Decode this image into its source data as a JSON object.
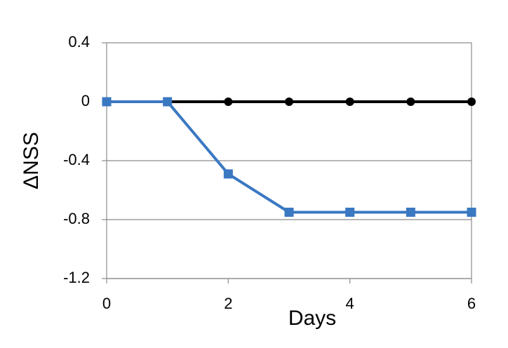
{
  "chart_data": {
    "type": "line",
    "x_label": "Days",
    "y_label": "ΔNSS",
    "xlim": [
      0,
      6
    ],
    "xticks": [
      0,
      2,
      4,
      6
    ],
    "ylim": [
      -1.2,
      0.4
    ],
    "yticks": [
      0.4,
      0,
      -0.4,
      -0.8,
      -1.2
    ],
    "grid": true,
    "series": [
      {
        "color": "#000000",
        "marker": "circle",
        "x": [
          0,
          1,
          2,
          3,
          4,
          5,
          6
        ],
        "values": [
          0,
          0,
          0,
          0,
          0,
          0,
          0
        ]
      },
      {
        "color": "#3a78c2",
        "marker": "square",
        "x": [
          0,
          1,
          2,
          3,
          4,
          5,
          6
        ],
        "values": [
          0,
          0,
          -0.49,
          -0.75,
          -0.75,
          -0.75,
          -0.75
        ]
      }
    ]
  }
}
